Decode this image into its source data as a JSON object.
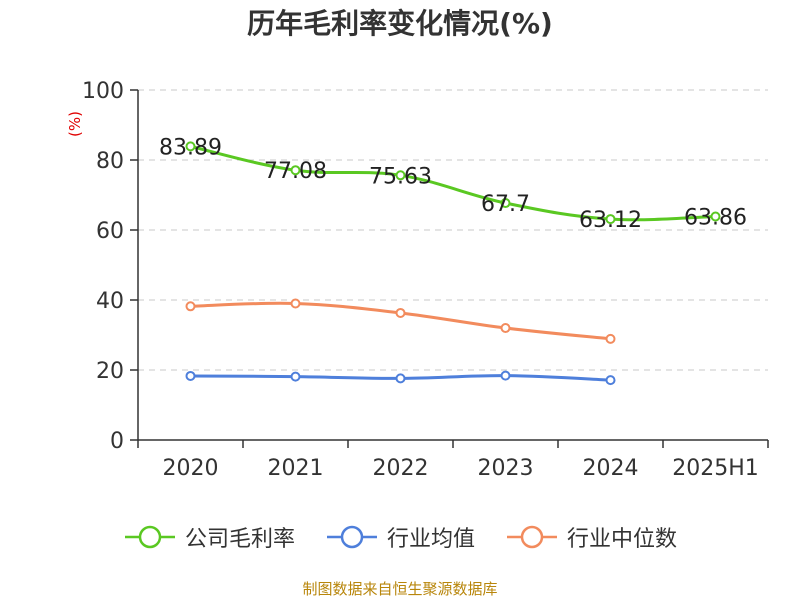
{
  "title": "历年毛利率变化情况(%)",
  "source": "制图数据来自恒生聚源数据库",
  "colors": {
    "grid": "#c8c8c8",
    "axis": "#333333",
    "unit": "#e00000",
    "source": "#b8860b"
  },
  "chart_data": {
    "type": "line",
    "title": "历年毛利率变化情况(%)",
    "ylabel": "(%)",
    "xlabel": "",
    "categories": [
      "2020",
      "2021",
      "2022",
      "2023",
      "2024",
      "2025H1"
    ],
    "yticks": [
      "0",
      "20",
      "40",
      "60",
      "80",
      "100"
    ],
    "ylim": [
      0,
      100
    ],
    "grid": "horizontal dashed",
    "legend_position": "bottom",
    "series": [
      {
        "name": "公司毛利率",
        "color": "#5ac822",
        "values": [
          83.89,
          77.08,
          75.63,
          67.7,
          63.12,
          63.86
        ],
        "labels": [
          "83.89",
          "77.08",
          "75.63",
          "67.7",
          "63.12",
          "63.86"
        ],
        "show_labels": true
      },
      {
        "name": "行业均值",
        "color": "#4e7fdb",
        "values": [
          18.3,
          18.1,
          17.6,
          18.4,
          17.1,
          null
        ],
        "show_labels": false
      },
      {
        "name": "行业中位数",
        "color": "#f28b5d",
        "values": [
          38.2,
          39.0,
          36.3,
          32.0,
          28.9,
          null
        ],
        "show_labels": false
      }
    ]
  }
}
